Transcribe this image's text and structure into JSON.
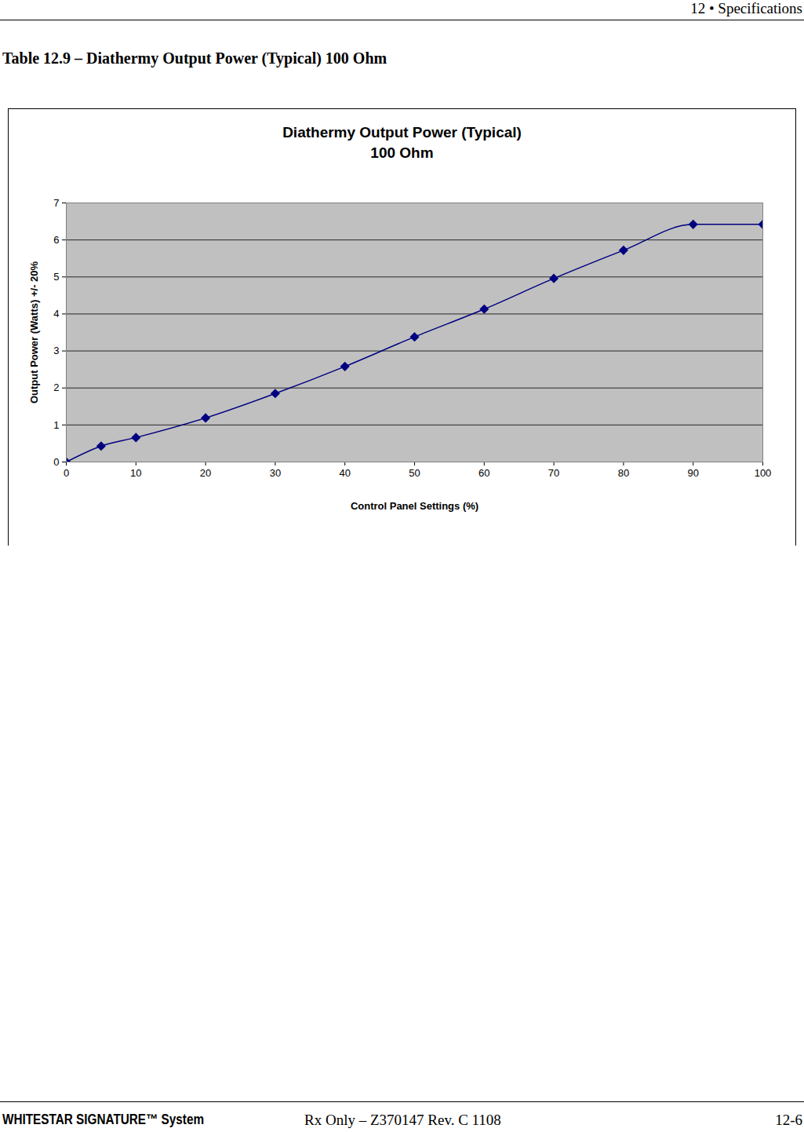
{
  "header": {
    "text": "12 • Specifications"
  },
  "table_title": "Table 12.9 – Diathermy Output Power (Typical) 100 Ohm",
  "chart_data": {
    "type": "line",
    "title": "Diathermy Output Power (Typical)",
    "subtitle": "100 Ohm",
    "x_label": "Control Panel Settings (%)",
    "y_label": "Output Power (Watts) +/- 20%",
    "x": [
      0,
      5,
      10,
      20,
      30,
      40,
      50,
      60,
      70,
      80,
      90,
      100
    ],
    "series": [
      {
        "name": "Diathermy Output Power",
        "color": "#000080",
        "marker": "diamond",
        "line_style": "solid",
        "values": [
          0,
          0.43,
          0.66,
          1.19,
          1.85,
          2.58,
          3.38,
          4.13,
          4.96,
          5.72,
          6.42,
          6.42
        ]
      }
    ],
    "xlim": [
      0,
      100
    ],
    "xticks": [
      0,
      10,
      20,
      30,
      40,
      50,
      60,
      70,
      80,
      90,
      100
    ],
    "ylim": [
      0,
      7
    ],
    "yticks": [
      0,
      1,
      2,
      3,
      4,
      5,
      6,
      7
    ],
    "grid": true
  },
  "footer": {
    "left": "WHITESTAR SIGNATURE™ System",
    "center": "Rx Only – Z370147 Rev. C 1108",
    "right": "12-6"
  }
}
